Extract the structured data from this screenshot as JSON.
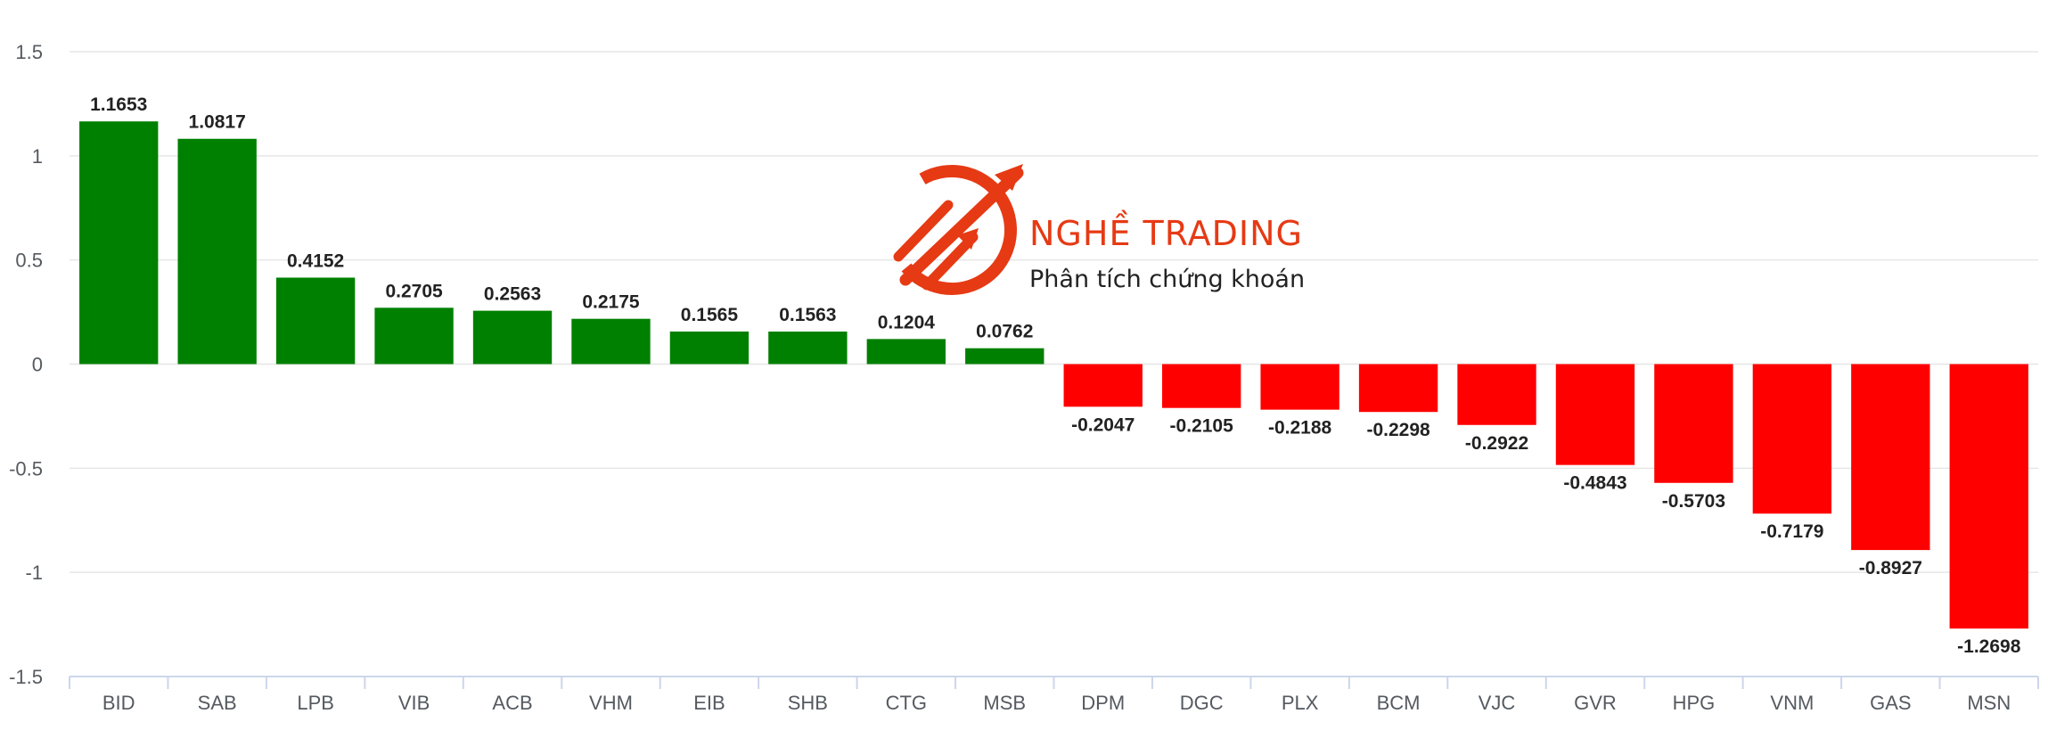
{
  "chart_data": {
    "type": "bar",
    "categories": [
      "BID",
      "SAB",
      "LPB",
      "VIB",
      "ACB",
      "VHM",
      "EIB",
      "SHB",
      "CTG",
      "MSB",
      "DPM",
      "DGC",
      "PLX",
      "BCM",
      "VJC",
      "GVR",
      "HPG",
      "VNM",
      "GAS",
      "MSN"
    ],
    "values": [
      1.1653,
      1.0817,
      0.4152,
      0.2705,
      0.2563,
      0.2175,
      0.1565,
      0.1563,
      0.1204,
      0.0762,
      -0.2047,
      -0.2105,
      -0.2188,
      -0.2298,
      -0.2922,
      -0.4843,
      -0.5703,
      -0.7179,
      -0.8927,
      -1.2698
    ],
    "value_labels": [
      "1.1653",
      "1.0817",
      "0.4152",
      "0.2705",
      "0.2563",
      "0.2175",
      "0.1565",
      "0.1563",
      "0.1204",
      "0.0762",
      "-0.2047",
      "-0.2105",
      "-0.2188",
      "-0.2298",
      "-0.2922",
      "-0.4843",
      "-0.5703",
      "-0.7179",
      "-0.8927",
      "-1.2698"
    ],
    "ylim": [
      -1.5,
      1.5
    ],
    "yticks": [
      1.5,
      1,
      0.5,
      0,
      -0.5,
      -1,
      -1.5
    ],
    "ytick_labels": [
      "1.5",
      "1",
      "0.5",
      "0",
      "-0.5",
      "-1",
      "-1.5"
    ],
    "grid": true,
    "colors": {
      "positive": "#008000",
      "negative": "#ff0000",
      "grid": "#e6e6e6",
      "axis": "#ccd6eb"
    }
  },
  "watermark": {
    "title": "NGHỀ TRADING",
    "subtitle": "Phân tích chứng khoán",
    "color": "#e63a14"
  }
}
